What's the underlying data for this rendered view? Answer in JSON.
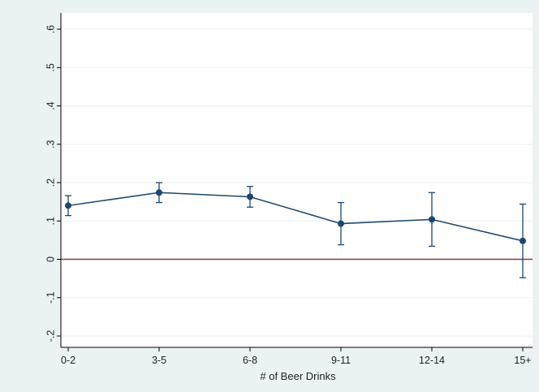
{
  "chart_data": {
    "type": "line",
    "title": "",
    "xlabel": "# of Beer Drinks",
    "ylabel": "",
    "categories": [
      "0-2",
      "3-5",
      "6-8",
      "9-11",
      "12-14",
      "15+"
    ],
    "series": [
      {
        "values": [
          0.14,
          0.174,
          0.163,
          0.093,
          0.104,
          0.048
        ],
        "ci_low": [
          0.114,
          0.148,
          0.136,
          0.038,
          0.034,
          -0.048
        ],
        "ci_high": [
          0.166,
          0.2,
          0.19,
          0.148,
          0.174,
          0.144
        ]
      }
    ],
    "yticks": [
      "-.2",
      "-.1",
      "0",
      ".1",
      ".2",
      ".3",
      ".4",
      ".5",
      ".6"
    ],
    "ytick_values": [
      -0.2,
      -0.1,
      0,
      0.1,
      0.2,
      0.3,
      0.4,
      0.5,
      0.6
    ],
    "ylim": [
      -0.2,
      0.6
    ],
    "reference_line": 0,
    "grid": true,
    "colors": {
      "background": "#eaf2f3",
      "plot_background": "#ffffff",
      "series": "#1a476f",
      "reference_line": "#90353b",
      "grid": "#eaf2f3",
      "axis": "#000000"
    }
  }
}
